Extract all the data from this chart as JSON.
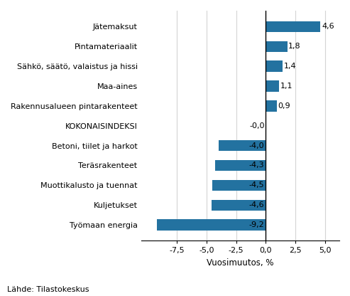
{
  "categories": [
    "Työmaan energia",
    "Kuljetukset",
    "Muottikalusto ja tuennat",
    "Teräsrakenteet",
    "Betoni, tiilet ja harkot",
    "KOKONAISINDEKSI",
    "Rakennusalueen pintarakenteet",
    "Maa-aines",
    "Sähkö, säätö, valaistus ja hissi",
    "Pintamateriaalit",
    "Jätemaksut"
  ],
  "values": [
    -9.2,
    -4.6,
    -4.5,
    -4.3,
    -4.0,
    0.0,
    0.9,
    1.1,
    1.4,
    1.8,
    4.6
  ],
  "bar_color": "#2372a0",
  "label_color": "#000000",
  "xlabel": "Vuosimuutos, %",
  "xlim": [
    -10.5,
    6.2
  ],
  "xticks": [
    -7.5,
    -5.0,
    -2.5,
    0.0,
    2.5,
    5.0
  ],
  "xtick_labels": [
    "-7,5",
    "-5,0",
    "-2,5",
    "0,0",
    "2,5",
    "5,0"
  ],
  "source": "Lähde: Tilastokeskus",
  "bar_labels": [
    "-9,2",
    "-4,6",
    "-4,5",
    "-4,3",
    "-4,0",
    "-0,0",
    "0,9",
    "1,1",
    "1,4",
    "1,8",
    "4,6"
  ],
  "grid_color": "#d4d4d4",
  "background_color": "#ffffff",
  "label_fontsize": 8.0,
  "xlabel_fontsize": 8.5,
  "source_fontsize": 8.0,
  "tick_fontsize": 8.0
}
